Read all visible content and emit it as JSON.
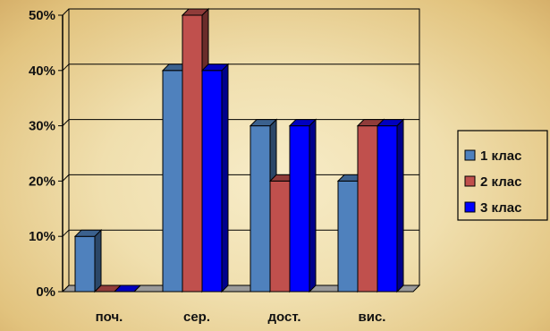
{
  "chart_data": {
    "type": "bar",
    "style": "3d-clustered-column",
    "categories": [
      "поч.",
      "сер.",
      "дост.",
      "вис."
    ],
    "series": [
      {
        "name": "1 клас",
        "values": [
          10,
          40,
          30,
          20
        ],
        "color": "#4f81bd"
      },
      {
        "name": "2 клас",
        "values": [
          0,
          50,
          20,
          30
        ],
        "color": "#c0504d"
      },
      {
        "name": "3 клас",
        "values": [
          0,
          40,
          30,
          30
        ],
        "color": "#0000ff"
      }
    ],
    "yticks": [
      0,
      10,
      20,
      30,
      40,
      50
    ],
    "ytick_labels": [
      "0%",
      "10%",
      "20%",
      "30%",
      "40%",
      "50%"
    ],
    "ylim": [
      0,
      50
    ],
    "grid": true,
    "legend_position": "right"
  }
}
